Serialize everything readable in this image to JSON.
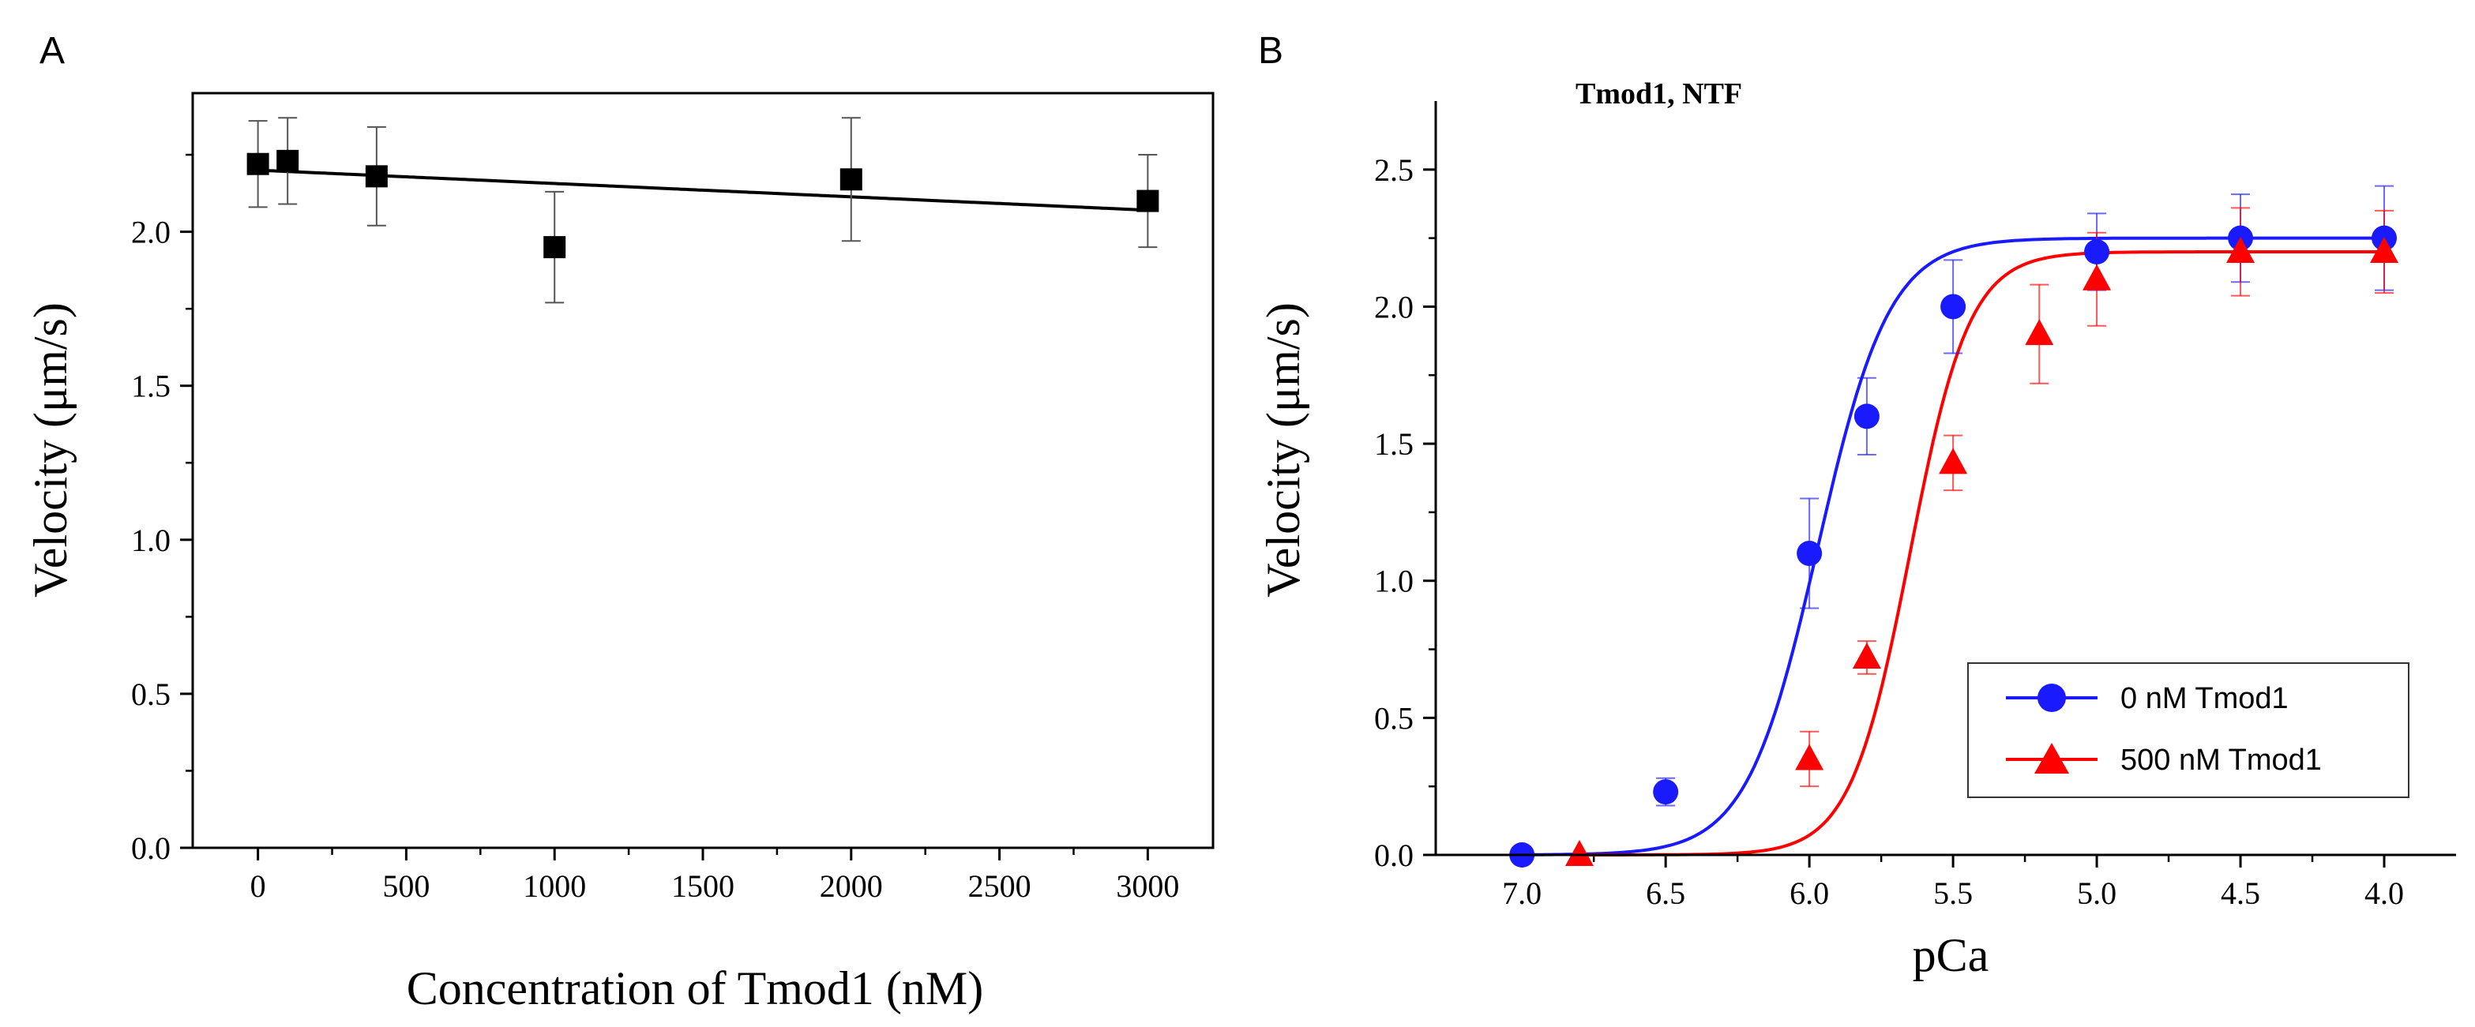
{
  "chart_data": [
    {
      "type": "scatter",
      "panel_label": "A",
      "title": "",
      "xlabel": "Concentration of Tmod1 (nM)",
      "ylabel": "Velocity (μm/s)",
      "xlim": [
        -220,
        3220
      ],
      "ylim": [
        0,
        2.45
      ],
      "xticks": [
        0,
        500,
        1000,
        1500,
        2000,
        2500,
        3000
      ],
      "xtick_labels": [
        "0",
        "500",
        "1000",
        "1500",
        "2000",
        "2500",
        "3000"
      ],
      "yticks": [
        0,
        0.5,
        1.0,
        1.5,
        2.0
      ],
      "ytick_labels": [
        "0.0",
        "0.5",
        "1.0",
        "1.5",
        "2.0"
      ],
      "grid": false,
      "series": [
        {
          "name": "Velocity",
          "color": "#000000",
          "marker": "square",
          "x": [
            0,
            100,
            400,
            1000,
            2000,
            3000
          ],
          "y": [
            2.22,
            2.23,
            2.18,
            1.95,
            2.17,
            2.1
          ],
          "err": [
            0.14,
            0.14,
            0.16,
            0.18,
            0.2,
            0.15
          ],
          "fit": {
            "type": "linear",
            "intercept": 2.2,
            "slope": -4.33e-05
          }
        }
      ]
    },
    {
      "type": "scatter",
      "panel_label": "B",
      "title": "Tmod1, NTF",
      "xlabel": "pCa",
      "ylabel": "Velocity (μm/s)",
      "xlim": [
        7.3,
        3.75
      ],
      "ylim": [
        0,
        2.75
      ],
      "x_reversed": true,
      "xticks": [
        7.0,
        6.5,
        6.0,
        5.5,
        5.0,
        4.5,
        4.0
      ],
      "xtick_labels": [
        "7.0",
        "6.5",
        "6.0",
        "5.5",
        "5.0",
        "4.5",
        "4.0"
      ],
      "yticks": [
        0,
        0.5,
        1.0,
        1.5,
        2.0,
        2.5
      ],
      "ytick_labels": [
        "0.0",
        "0.5",
        "1.0",
        "1.5",
        "2.0",
        "2.5"
      ],
      "grid": false,
      "legend_position": "bottom-right",
      "series": [
        {
          "name": "0 nM Tmod1",
          "color": "#1a1aff",
          "marker": "circle",
          "x": [
            7.0,
            6.5,
            6.0,
            5.8,
            5.5,
            5.0,
            4.5,
            4.0
          ],
          "y": [
            0.0,
            0.23,
            1.1,
            1.6,
            2.0,
            2.2,
            2.25,
            2.25
          ],
          "err": [
            0.0,
            0.05,
            0.2,
            0.14,
            0.17,
            0.14,
            0.16,
            0.19
          ],
          "fit": {
            "type": "hill",
            "vmax": 2.25,
            "pca50": 5.97,
            "n": 3.5
          }
        },
        {
          "name": "500 nM Tmod1",
          "color": "#ff0000",
          "marker": "triangle",
          "x": [
            6.8,
            6.0,
            5.8,
            5.5,
            5.2,
            5.0,
            4.5,
            4.0
          ],
          "y": [
            0.0,
            0.35,
            0.72,
            1.43,
            1.9,
            2.1,
            2.2,
            2.2
          ],
          "err": [
            0.0,
            0.1,
            0.06,
            0.1,
            0.18,
            0.17,
            0.16,
            0.15
          ],
          "fit": {
            "type": "hill",
            "vmax": 2.2,
            "pca50": 5.65,
            "n": 4.2
          }
        }
      ]
    }
  ]
}
